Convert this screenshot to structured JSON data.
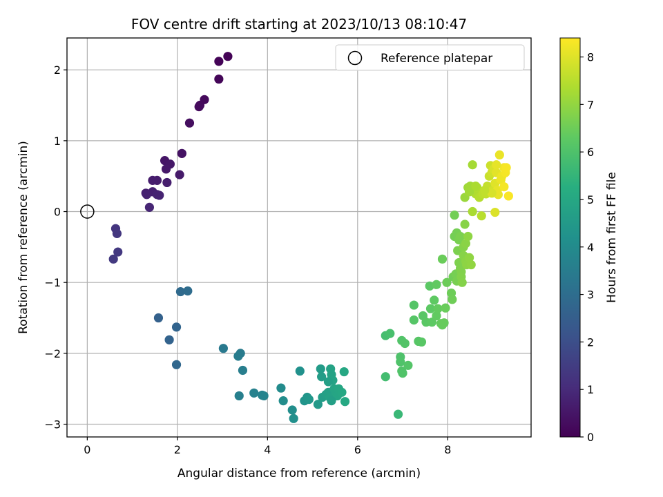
{
  "chart_data": {
    "type": "scatter",
    "title": "FOV centre drift starting at 2023/10/13 08:10:47",
    "xlabel": "Angular distance from reference (arcmin)",
    "ylabel": "Rotation from reference (arcmin)",
    "xlim": [
      -0.45,
      9.85
    ],
    "ylim": [
      -3.18,
      2.45
    ],
    "xticks": [
      0,
      2,
      4,
      6,
      8
    ],
    "xtick_labels": [
      "0",
      "2",
      "4",
      "6",
      "8"
    ],
    "yticks": [
      -3,
      -2,
      -1,
      0,
      1,
      2
    ],
    "ytick_labels": [
      "−3",
      "−2",
      "−1",
      "0",
      "1",
      "2"
    ],
    "grid": true,
    "legend": {
      "position": "top-right",
      "entries": [
        "Reference platepar"
      ]
    },
    "colorbar": {
      "label": "Hours from first FF file",
      "range": [
        0,
        8.4
      ],
      "ticks": [
        0,
        1,
        2,
        3,
        4,
        5,
        6,
        7,
        8
      ],
      "tick_labels": [
        "0",
        "1",
        "2",
        "3",
        "4",
        "5",
        "6",
        "7",
        "8"
      ],
      "colormap": "viridis"
    },
    "reference_point": {
      "x": 0,
      "y": 0,
      "label": "Reference platepar"
    },
    "points": [
      [
        3.12,
        2.19,
        0.05
      ],
      [
        2.92,
        2.12,
        0.08
      ],
      [
        2.92,
        1.87,
        0.12
      ],
      [
        2.6,
        1.58,
        0.18
      ],
      [
        2.5,
        1.5,
        0.22
      ],
      [
        2.48,
        1.48,
        0.24
      ],
      [
        2.27,
        1.25,
        0.3
      ],
      [
        2.1,
        0.82,
        0.4
      ],
      [
        1.72,
        0.72,
        0.48
      ],
      [
        1.84,
        0.67,
        0.52
      ],
      [
        1.75,
        0.6,
        0.56
      ],
      [
        2.05,
        0.52,
        0.6
      ],
      [
        1.55,
        0.44,
        0.64
      ],
      [
        1.45,
        0.44,
        0.66
      ],
      [
        1.77,
        0.41,
        0.7
      ],
      [
        1.3,
        0.26,
        0.72
      ],
      [
        1.45,
        0.28,
        0.75
      ],
      [
        1.32,
        0.24,
        0.78
      ],
      [
        1.55,
        0.24,
        0.8
      ],
      [
        1.6,
        0.23,
        0.82
      ],
      [
        1.38,
        0.06,
        0.88
      ],
      [
        0.63,
        -0.24,
        1.28
      ],
      [
        0.66,
        -0.31,
        1.32
      ],
      [
        0.68,
        -0.57,
        1.36
      ],
      [
        0.58,
        -0.67,
        1.4
      ],
      [
        2.07,
        -1.13,
        2.9
      ],
      [
        2.23,
        -1.12,
        2.95
      ],
      [
        1.58,
        -1.5,
        2.6
      ],
      [
        1.98,
        -1.63,
        2.7
      ],
      [
        1.82,
        -1.81,
        2.65
      ],
      [
        1.98,
        -2.16,
        2.8
      ],
      [
        3.02,
        -1.93,
        3.4
      ],
      [
        3.4,
        -2.0,
        3.45
      ],
      [
        3.35,
        -2.04,
        3.5
      ],
      [
        3.45,
        -2.24,
        3.55
      ],
      [
        3.37,
        -2.6,
        3.6
      ],
      [
        3.7,
        -2.56,
        3.65
      ],
      [
        3.88,
        -2.59,
        3.7
      ],
      [
        3.92,
        -2.6,
        3.72
      ],
      [
        4.3,
        -2.49,
        4.0
      ],
      [
        4.35,
        -2.67,
        4.05
      ],
      [
        4.55,
        -2.8,
        4.1
      ],
      [
        4.58,
        -2.92,
        4.15
      ],
      [
        4.72,
        -2.25,
        4.2
      ],
      [
        4.82,
        -2.67,
        4.3
      ],
      [
        4.88,
        -2.62,
        4.35
      ],
      [
        4.92,
        -2.65,
        4.4
      ],
      [
        5.12,
        -2.72,
        4.5
      ],
      [
        5.18,
        -2.22,
        4.55
      ],
      [
        5.2,
        -2.33,
        4.6
      ],
      [
        5.22,
        -2.62,
        4.65
      ],
      [
        5.3,
        -2.58,
        4.7
      ],
      [
        5.35,
        -2.55,
        4.75
      ],
      [
        5.38,
        -2.62,
        4.78
      ],
      [
        5.4,
        -2.22,
        4.8
      ],
      [
        5.42,
        -2.3,
        4.82
      ],
      [
        5.45,
        -2.38,
        4.85
      ],
      [
        5.48,
        -2.5,
        4.88
      ],
      [
        5.52,
        -2.55,
        4.9
      ],
      [
        5.55,
        -2.6,
        4.92
      ],
      [
        5.58,
        -2.5,
        4.95
      ],
      [
        5.65,
        -2.55,
        4.98
      ],
      [
        5.7,
        -2.26,
        5.0
      ],
      [
        5.72,
        -2.68,
        5.02
      ],
      [
        5.42,
        -2.67,
        4.7
      ],
      [
        5.35,
        -2.4,
        4.72
      ],
      [
        6.62,
        -2.33,
        5.8
      ],
      [
        6.62,
        -1.75,
        5.85
      ],
      [
        6.72,
        -1.72,
        5.9
      ],
      [
        6.9,
        -2.86,
        5.6
      ],
      [
        6.95,
        -2.05,
        6.0
      ],
      [
        6.95,
        -2.12,
        6.02
      ],
      [
        6.98,
        -2.25,
        6.04
      ],
      [
        7.0,
        -2.28,
        6.05
      ],
      [
        6.98,
        -1.82,
        6.06
      ],
      [
        7.05,
        -1.86,
        6.08
      ],
      [
        7.12,
        -2.17,
        6.1
      ],
      [
        7.25,
        -1.32,
        6.12
      ],
      [
        7.25,
        -1.53,
        6.14
      ],
      [
        7.35,
        -1.83,
        6.16
      ],
      [
        7.42,
        -1.84,
        6.18
      ],
      [
        7.45,
        -1.47,
        6.2
      ],
      [
        7.52,
        -1.56,
        6.22
      ],
      [
        7.6,
        -1.05,
        6.24
      ],
      [
        7.62,
        -1.37,
        6.26
      ],
      [
        7.65,
        -1.56,
        6.28
      ],
      [
        7.7,
        -1.25,
        6.3
      ],
      [
        7.75,
        -1.03,
        6.32
      ],
      [
        7.75,
        -1.47,
        6.34
      ],
      [
        7.78,
        -1.37,
        6.36
      ],
      [
        7.85,
        -1.58,
        6.38
      ],
      [
        7.88,
        -1.6,
        6.4
      ],
      [
        7.92,
        -1.57,
        6.42
      ],
      [
        7.95,
        -1.36,
        6.44
      ],
      [
        7.88,
        -0.67,
        6.46
      ],
      [
        7.98,
        -1.0,
        6.48
      ],
      [
        8.08,
        -1.15,
        6.5
      ],
      [
        8.1,
        -1.24,
        6.52
      ],
      [
        8.12,
        -0.92,
        6.54
      ],
      [
        8.15,
        -0.05,
        6.56
      ],
      [
        8.15,
        -0.35,
        6.58
      ],
      [
        8.2,
        -0.3,
        6.6
      ],
      [
        8.18,
        -0.88,
        6.62
      ],
      [
        8.2,
        -0.98,
        6.64
      ],
      [
        8.25,
        -0.4,
        6.66
      ],
      [
        8.28,
        -0.35,
        6.68
      ],
      [
        8.22,
        -0.55,
        6.7
      ],
      [
        8.25,
        -0.72,
        6.72
      ],
      [
        8.28,
        -0.8,
        6.74
      ],
      [
        8.3,
        -0.85,
        6.76
      ],
      [
        8.3,
        -0.92,
        6.78
      ],
      [
        8.32,
        -1.0,
        6.8
      ],
      [
        8.35,
        -0.5,
        6.82
      ],
      [
        8.35,
        -0.62,
        6.84
      ],
      [
        8.38,
        -0.18,
        6.86
      ],
      [
        8.4,
        -0.45,
        6.88
      ],
      [
        8.4,
        -0.7,
        6.9
      ],
      [
        8.42,
        -0.75,
        6.92
      ],
      [
        8.45,
        -0.35,
        6.94
      ],
      [
        8.48,
        -0.65,
        6.96
      ],
      [
        8.52,
        -0.75,
        6.98
      ],
      [
        8.38,
        0.2,
        7.1
      ],
      [
        8.45,
        0.34,
        7.15
      ],
      [
        8.5,
        0.36,
        7.2
      ],
      [
        8.55,
        0.66,
        7.25
      ],
      [
        8.55,
        0.0,
        7.3
      ],
      [
        8.6,
        0.3,
        7.35
      ],
      [
        8.62,
        0.25,
        7.38
      ],
      [
        8.65,
        0.34,
        7.4
      ],
      [
        8.7,
        0.2,
        7.45
      ],
      [
        8.75,
        -0.06,
        7.5
      ],
      [
        8.78,
        0.25,
        7.55
      ],
      [
        8.85,
        0.25,
        7.6
      ],
      [
        8.88,
        0.36,
        7.65
      ],
      [
        8.92,
        0.5,
        7.7
      ],
      [
        8.95,
        0.65,
        7.75
      ],
      [
        8.98,
        0.55,
        7.8
      ],
      [
        9.0,
        0.3,
        7.85
      ],
      [
        9.02,
        0.6,
        7.9
      ],
      [
        9.05,
        -0.01,
        7.95
      ],
      [
        9.05,
        0.4,
        8.0
      ],
      [
        9.08,
        0.55,
        8.05
      ],
      [
        9.1,
        0.3,
        8.1
      ],
      [
        9.12,
        0.24,
        8.12
      ],
      [
        9.15,
        0.8,
        8.15
      ],
      [
        9.18,
        0.45,
        8.18
      ],
      [
        9.2,
        0.5,
        8.2
      ],
      [
        9.25,
        0.62,
        8.25
      ],
      [
        9.25,
        0.35,
        8.28
      ],
      [
        9.28,
        0.55,
        8.3
      ],
      [
        9.3,
        0.62,
        8.32
      ],
      [
        9.35,
        0.22,
        8.35
      ],
      [
        9.08,
        0.66,
        8.1
      ],
      [
        8.98,
        0.26,
        7.9
      ],
      [
        8.82,
        0.3,
        7.6
      ],
      [
        8.48,
        0.28,
        7.2
      ],
      [
        8.62,
        0.36,
        7.32
      ]
    ]
  }
}
